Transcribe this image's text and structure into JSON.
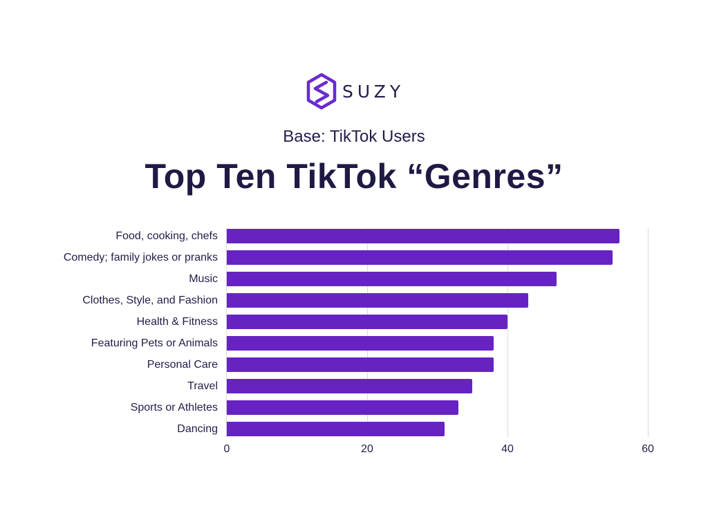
{
  "brand": {
    "name": "SUZY",
    "logo_icon": "hexagon-s-logo",
    "color": "#6a2bd0"
  },
  "header": {
    "subtitle": "Base: TikTok Users",
    "title": "Top Ten TikTok “Genres”"
  },
  "colors": {
    "bar": "#6723c2",
    "text": "#1f1b45",
    "grid": "#d9d9de"
  },
  "axis": {
    "ticks": [
      "0",
      "20",
      "40",
      "60"
    ]
  },
  "categories": [
    "Food, cooking, chefs",
    "Comedy; family jokes or pranks",
    "Music",
    "Clothes, Style, and Fashion",
    "Health & Fitness",
    "Featuring Pets or Animals",
    "Personal Care",
    "Travel",
    "Sports or Athletes",
    "Dancing"
  ],
  "chart_data": {
    "type": "bar",
    "orientation": "horizontal",
    "title": "Top Ten TikTok “Genres”",
    "subtitle": "Base: TikTok Users",
    "categories": [
      "Food, cooking, chefs",
      "Comedy; family jokes or pranks",
      "Music",
      "Clothes, Style, and Fashion",
      "Health & Fitness",
      "Featuring Pets or Animals",
      "Personal Care",
      "Travel",
      "Sports or Athletes",
      "Dancing"
    ],
    "values": [
      56,
      55,
      47,
      43,
      40,
      38,
      38,
      35,
      33,
      31
    ],
    "xlabel": "",
    "ylabel": "",
    "xlim": [
      0,
      60
    ],
    "xticks": [
      0,
      20,
      40,
      60
    ],
    "grid": true,
    "legend": null,
    "bar_color": "#6723c2"
  }
}
